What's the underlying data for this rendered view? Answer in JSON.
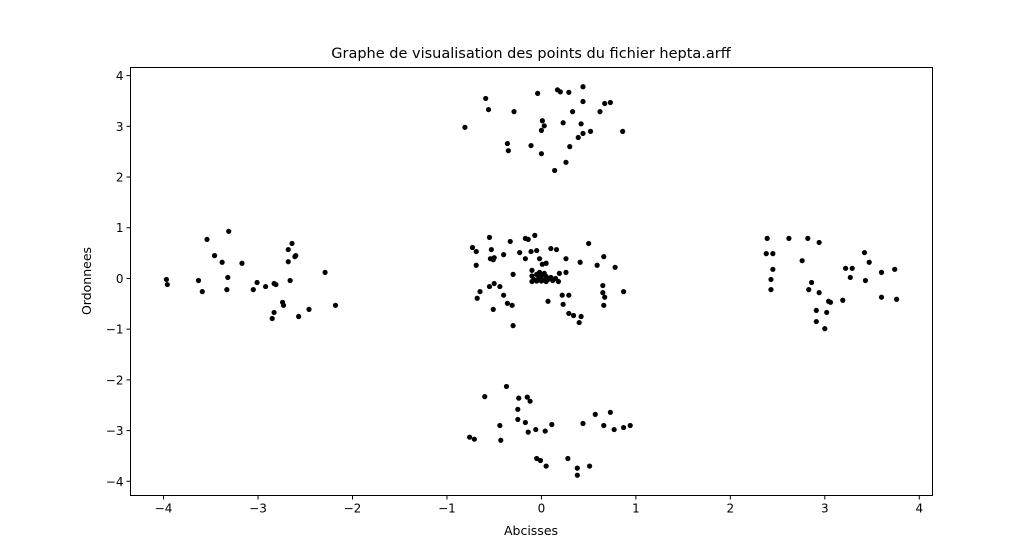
{
  "chart_data": {
    "type": "scatter",
    "title": "Graphe de visualisation des points du fichier hepta.arff",
    "xlabel": "Abcisses",
    "ylabel": "Ordonnees",
    "xlim": [
      -4.35,
      4.14
    ],
    "ylim": [
      -4.28,
      4.16
    ],
    "xticks": [
      -4,
      -3,
      -2,
      -1,
      0,
      1,
      2,
      3,
      4
    ],
    "yticks": [
      -4,
      -3,
      -2,
      -1,
      0,
      1,
      2,
      3,
      4
    ],
    "grid": false,
    "marker_color": "#000000",
    "points": [
      [
        -0.55,
        0.81
      ],
      [
        -0.33,
        0.73
      ],
      [
        -0.17,
        0.79
      ],
      [
        -0.14,
        0.77
      ],
      [
        -0.07,
        0.85
      ],
      [
        -0.73,
        0.61
      ],
      [
        -0.69,
        0.53
      ],
      [
        -0.53,
        0.57
      ],
      [
        -0.4,
        0.47
      ],
      [
        -0.23,
        0.51
      ],
      [
        -0.11,
        0.53
      ],
      [
        -0.05,
        0.55
      ],
      [
        0.1,
        0.59
      ],
      [
        0.16,
        0.57
      ],
      [
        0.5,
        0.69
      ],
      [
        -0.54,
        0.39
      ],
      [
        -0.5,
        0.41
      ],
      [
        -0.51,
        0.37
      ],
      [
        -0.17,
        0.39
      ],
      [
        -0.02,
        0.39
      ],
      [
        0.01,
        0.28
      ],
      [
        0.05,
        0.3
      ],
      [
        0.26,
        0.39
      ],
      [
        0.66,
        0.43
      ],
      [
        -0.69,
        0.26
      ],
      [
        0.41,
        0.32
      ],
      [
        0.59,
        0.26
      ],
      [
        0.78,
        0.22
      ],
      [
        -0.3,
        0.08
      ],
      [
        -0.1,
        0.16
      ],
      [
        0.19,
        0.1
      ],
      [
        0.26,
        0.12
      ],
      [
        0.18,
        -0.06
      ],
      [
        0.65,
        -0.14
      ],
      [
        -0.55,
        -0.16
      ],
      [
        -0.5,
        -0.1
      ],
      [
        -0.44,
        -0.16
      ],
      [
        -0.65,
        -0.26
      ],
      [
        -0.68,
        -0.39
      ],
      [
        -0.4,
        -0.33
      ],
      [
        0.22,
        -0.33
      ],
      [
        0.29,
        -0.33
      ],
      [
        0.65,
        -0.28
      ],
      [
        0.67,
        -0.37
      ],
      [
        0.87,
        -0.26
      ],
      [
        -0.36,
        -0.49
      ],
      [
        -0.31,
        -0.53
      ],
      [
        0.07,
        -0.45
      ],
      [
        0.23,
        -0.51
      ],
      [
        0.66,
        -0.53
      ],
      [
        -0.51,
        -0.61
      ],
      [
        0.29,
        -0.69
      ],
      [
        0.34,
        -0.73
      ],
      [
        0.42,
        -0.75
      ],
      [
        0.4,
        -0.87
      ],
      [
        -0.3,
        -0.93
      ],
      [
        -0.1,
        0.05
      ],
      [
        -0.05,
        0.08
      ],
      [
        0.0,
        0.06
      ],
      [
        0.05,
        0.04
      ],
      [
        0.1,
        0.02
      ],
      [
        -0.08,
        -0.02
      ],
      [
        -0.03,
        0.0
      ],
      [
        0.02,
        -0.03
      ],
      [
        0.07,
        -0.02
      ],
      [
        0.12,
        -0.04
      ],
      [
        -0.1,
        -0.06
      ],
      [
        -0.05,
        -0.05
      ],
      [
        0.0,
        -0.05
      ],
      [
        0.05,
        -0.06
      ],
      [
        0.15,
        0.0
      ],
      [
        -0.02,
        0.12
      ],
      [
        0.03,
        0.1
      ],
      [
        -0.81,
        2.98
      ],
      [
        -0.59,
        3.55
      ],
      [
        -0.56,
        3.33
      ],
      [
        -0.29,
        3.29
      ],
      [
        -0.04,
        3.65
      ],
      [
        0.17,
        3.72
      ],
      [
        0.2,
        3.68
      ],
      [
        0.29,
        3.67
      ],
      [
        0.44,
        3.78
      ],
      [
        0.44,
        3.49
      ],
      [
        0.33,
        3.29
      ],
      [
        0.67,
        3.45
      ],
      [
        0.73,
        3.47
      ],
      [
        0.01,
        3.11
      ],
      [
        0.03,
        3.01
      ],
      [
        0.0,
        2.92
      ],
      [
        0.23,
        3.07
      ],
      [
        0.42,
        3.05
      ],
      [
        -0.36,
        2.66
      ],
      [
        -0.35,
        2.52
      ],
      [
        -0.11,
        2.62
      ],
      [
        0.0,
        2.46
      ],
      [
        0.3,
        2.6
      ],
      [
        0.39,
        2.78
      ],
      [
        0.44,
        2.86
      ],
      [
        0.52,
        2.9
      ],
      [
        0.86,
        2.9
      ],
      [
        0.26,
        2.29
      ],
      [
        0.14,
        2.13
      ],
      [
        0.62,
        3.29
      ],
      [
        -0.37,
        -2.13
      ],
      [
        -0.6,
        -2.33
      ],
      [
        -0.24,
        -2.36
      ],
      [
        -0.15,
        -2.34
      ],
      [
        -0.12,
        -2.42
      ],
      [
        -0.44,
        -2.9
      ],
      [
        -0.25,
        -2.58
      ],
      [
        -0.25,
        -2.78
      ],
      [
        -0.17,
        -2.84
      ],
      [
        -0.14,
        -3.03
      ],
      [
        -0.06,
        -2.98
      ],
      [
        0.11,
        -2.88
      ],
      [
        0.04,
        -3.01
      ],
      [
        -0.76,
        -3.13
      ],
      [
        -0.71,
        -3.17
      ],
      [
        -0.43,
        -3.19
      ],
      [
        0.44,
        -2.86
      ],
      [
        0.57,
        -2.68
      ],
      [
        0.73,
        -2.64
      ],
      [
        0.94,
        -2.9
      ],
      [
        0.77,
        -2.98
      ],
      [
        0.87,
        -2.94
      ],
      [
        -0.05,
        -3.55
      ],
      [
        -0.01,
        -3.59
      ],
      [
        0.05,
        -3.7
      ],
      [
        0.28,
        -3.55
      ],
      [
        0.38,
        -3.74
      ],
      [
        0.38,
        -3.88
      ],
      [
        0.51,
        -3.7
      ],
      [
        0.66,
        -2.9
      ],
      [
        -3.97,
        -0.02
      ],
      [
        -3.96,
        -0.12
      ],
      [
        -3.63,
        -0.04
      ],
      [
        -3.59,
        -0.26
      ],
      [
        -3.54,
        0.77
      ],
      [
        -3.46,
        0.45
      ],
      [
        -3.38,
        0.32
      ],
      [
        -3.31,
        0.93
      ],
      [
        -3.32,
        0.02
      ],
      [
        -3.33,
        -0.22
      ],
      [
        -3.17,
        0.3
      ],
      [
        -3.05,
        -0.22
      ],
      [
        -3.01,
        -0.08
      ],
      [
        -2.92,
        -0.16
      ],
      [
        -2.83,
        -0.1
      ],
      [
        -2.81,
        -0.12
      ],
      [
        -2.68,
        0.57
      ],
      [
        -2.64,
        0.69
      ],
      [
        -2.61,
        0.43
      ],
      [
        -2.6,
        0.45
      ],
      [
        -2.68,
        0.33
      ],
      [
        -2.66,
        -0.04
      ],
      [
        -2.73,
        -0.53
      ],
      [
        -2.74,
        -0.47
      ],
      [
        -2.83,
        -0.67
      ],
      [
        -2.85,
        -0.79
      ],
      [
        -2.57,
        -0.75
      ],
      [
        -2.46,
        -0.61
      ],
      [
        -2.29,
        0.12
      ],
      [
        -2.18,
        -0.53
      ],
      [
        2.39,
        0.79
      ],
      [
        2.38,
        0.49
      ],
      [
        2.45,
        0.49
      ],
      [
        2.45,
        0.18
      ],
      [
        2.43,
        -0.02
      ],
      [
        2.43,
        -0.22
      ],
      [
        2.62,
        0.79
      ],
      [
        2.76,
        0.35
      ],
      [
        2.82,
        0.79
      ],
      [
        2.94,
        0.71
      ],
      [
        2.86,
        -0.08
      ],
      [
        2.83,
        -0.22
      ],
      [
        2.94,
        -0.28
      ],
      [
        2.91,
        -0.63
      ],
      [
        2.91,
        -0.85
      ],
      [
        3.0,
        -0.99
      ],
      [
        3.02,
        -0.67
      ],
      [
        3.06,
        -0.47
      ],
      [
        3.04,
        -0.45
      ],
      [
        3.19,
        -0.43
      ],
      [
        3.22,
        0.2
      ],
      [
        3.29,
        0.2
      ],
      [
        3.27,
        0.02
      ],
      [
        3.42,
        0.51
      ],
      [
        3.47,
        0.32
      ],
      [
        3.43,
        -0.04
      ],
      [
        3.6,
        0.12
      ],
      [
        3.6,
        -0.37
      ],
      [
        3.74,
        0.18
      ],
      [
        3.76,
        -0.41
      ]
    ]
  }
}
